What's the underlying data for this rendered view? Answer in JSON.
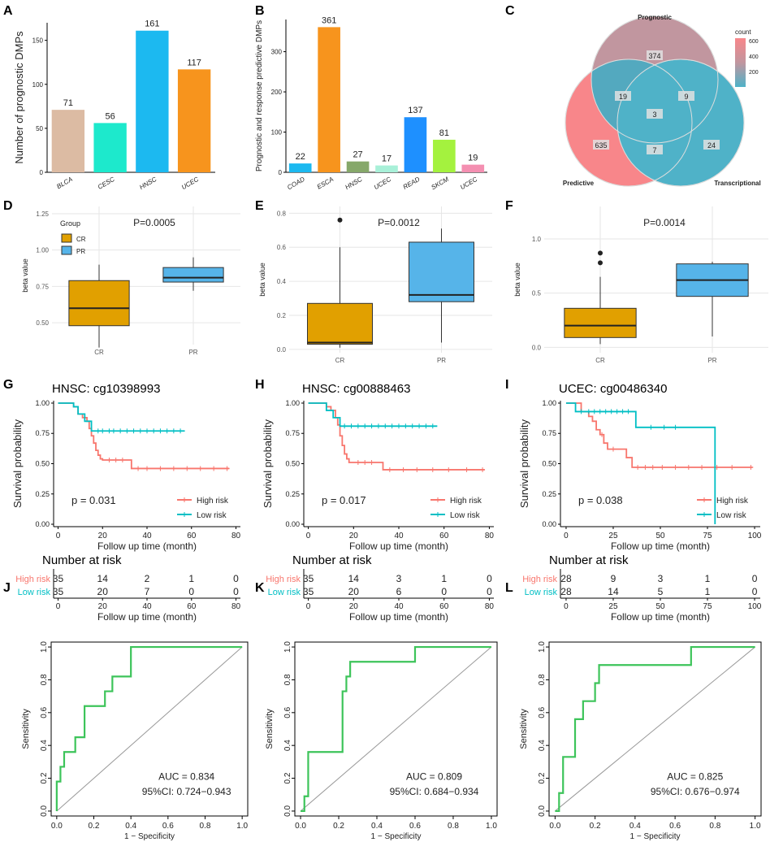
{
  "colors": {
    "blca": "#dcbba3",
    "cesc": "#1de9cc",
    "hnsc": "#1cb9f0",
    "ucec": "#f7941d",
    "coad": "#1cb9f0",
    "esca": "#f7941d",
    "hnsc_b": "#86a86a",
    "ucec_b": "#a8f0d8",
    "read": "#1e90ff",
    "skcm": "#a4f23e",
    "ucec2": "#f48fb1",
    "cr": "#e1a000",
    "pr": "#56b4e9",
    "high": "#f8766d",
    "low": "#00bfc4",
    "roc": "#3dc45a",
    "venn_prog": "#c1969f",
    "venn_pred": "#f8868a",
    "venn_trans": "#4fb2c8"
  },
  "chart_data": [
    {
      "panel": "A",
      "type": "bar",
      "title": "",
      "xlabel": "",
      "ylabel": "Number of prognostic DMPs",
      "categories": [
        "BLCA",
        "CESC",
        "HNSC",
        "UCEC"
      ],
      "values": [
        71,
        56,
        161,
        117
      ],
      "value_labels": [
        "71",
        "56",
        "161",
        "117"
      ],
      "ylim": [
        0,
        170
      ],
      "yticks": [
        0,
        50,
        100,
        150
      ]
    },
    {
      "panel": "B",
      "type": "bar",
      "title": "",
      "xlabel": "",
      "ylabel": "Prognostic and response predictive DMPs",
      "categories": [
        "COAD",
        "ESCA",
        "HNSC",
        "UCEC",
        "READ",
        "SKCM",
        "UCEC"
      ],
      "values": [
        22,
        361,
        27,
        17,
        137,
        81,
        19
      ],
      "value_labels": [
        "22",
        "361",
        "27",
        "17",
        "137",
        "81",
        "19"
      ],
      "ylim": [
        0,
        380
      ],
      "yticks": [
        0,
        100,
        200,
        300
      ]
    },
    {
      "panel": "C",
      "type": "venn",
      "sets": [
        "Prognostic",
        "Predictive",
        "Transcriptional"
      ],
      "regions": {
        "prognostic_only": 374,
        "predictive_only": 635,
        "transcriptional_only": 24,
        "prog_pred": 19,
        "prog_trans": 9,
        "pred_trans": 7,
        "all": 3
      },
      "legend_title": "count",
      "legend_ticks": [
        "600",
        "400",
        "200"
      ]
    },
    {
      "panel": "D",
      "type": "box",
      "ylabel": "beta value",
      "groups": [
        "CR",
        "PR"
      ],
      "pvalue": "P=0.0005",
      "legend_title": "Group",
      "legend_items": [
        "CR",
        "PR"
      ],
      "ylim": [
        0.35,
        1.3
      ],
      "yticks": [
        "0.50",
        "0.75",
        "1.00",
        "1.25"
      ],
      "ytick_values": [
        0.5,
        0.75,
        1.0,
        1.25
      ],
      "boxes": [
        {
          "min": 0.33,
          "q1": 0.48,
          "median": 0.6,
          "q3": 0.79,
          "max": 0.9,
          "outliers": []
        },
        {
          "min": 0.72,
          "q1": 0.78,
          "median": 0.81,
          "q3": 0.88,
          "max": 0.95,
          "outliers": []
        }
      ]
    },
    {
      "panel": "E",
      "type": "box",
      "ylabel": "beta value",
      "groups": [
        "CR",
        "PR"
      ],
      "pvalue": "P=0.0012",
      "ylim": [
        -0.02,
        0.84
      ],
      "yticks": [
        "0.0",
        "0.2",
        "0.4",
        "0.6",
        "0.8"
      ],
      "ytick_values": [
        0,
        0.2,
        0.4,
        0.6,
        0.8
      ],
      "boxes": [
        {
          "min": 0.01,
          "q1": 0.03,
          "median": 0.04,
          "q3": 0.27,
          "max": 0.6,
          "outliers": [
            0.76
          ]
        },
        {
          "min": 0.04,
          "q1": 0.28,
          "median": 0.32,
          "q3": 0.63,
          "max": 0.71,
          "outliers": []
        }
      ]
    },
    {
      "panel": "F",
      "type": "box",
      "ylabel": "beta value",
      "groups": [
        "CR",
        "PR"
      ],
      "pvalue": "P=0.0014",
      "ylim": [
        -0.05,
        1.3
      ],
      "yticks": [
        "0.0",
        "0.5",
        "1.0"
      ],
      "ytick_values": [
        0,
        0.5,
        1.0
      ],
      "boxes": [
        {
          "min": 0.03,
          "q1": 0.09,
          "median": 0.2,
          "q3": 0.36,
          "max": 0.65,
          "outliers": [
            0.78,
            0.87
          ]
        },
        {
          "min": 0.1,
          "q1": 0.47,
          "median": 0.62,
          "q3": 0.77,
          "max": 0.79,
          "outliers": []
        }
      ]
    },
    {
      "panel": "G",
      "type": "line",
      "subtype": "kaplan-meier",
      "title": "HNSC: cg10398993",
      "xlabel": "Follow up time (month)",
      "ylabel": "Survival probability",
      "pvalue": "p = 0.031",
      "xlim": [
        -2,
        82
      ],
      "xticks": [
        "0",
        "20",
        "40",
        "60",
        "80"
      ],
      "xtick_values": [
        0,
        20,
        40,
        60,
        80
      ],
      "ylim": [
        -0.02,
        1.02
      ],
      "yticks": [
        "0.00",
        "0.25",
        "0.50",
        "0.75",
        "1.00"
      ],
      "ytick_values": [
        0,
        0.25,
        0.5,
        0.75,
        1.0
      ],
      "series": [
        {
          "name": "High risk",
          "x": [
            0,
            7,
            9,
            11,
            13,
            14,
            15,
            16,
            17,
            18,
            19,
            20,
            33,
            77
          ],
          "y": [
            1.0,
            0.97,
            0.91,
            0.88,
            0.85,
            0.79,
            0.73,
            0.67,
            0.61,
            0.57,
            0.54,
            0.53,
            0.46,
            0.46
          ],
          "censor_x": [
            23,
            26,
            29,
            36,
            40,
            46,
            52,
            58,
            64,
            70,
            76
          ]
        },
        {
          "name": "Low risk",
          "x": [
            0,
            7,
            9,
            12,
            15,
            57
          ],
          "y": [
            1.0,
            0.97,
            0.91,
            0.85,
            0.77,
            0.77
          ],
          "censor_x": [
            18,
            20,
            23,
            25,
            28,
            31,
            34,
            37,
            40,
            43,
            46,
            49,
            52,
            55
          ]
        }
      ],
      "risk_table_title": "Number at risk",
      "risk_table": [
        {
          "name": "High risk",
          "values": [
            "35",
            "14",
            "2",
            "1",
            "0"
          ]
        },
        {
          "name": "Low risk",
          "values": [
            "35",
            "20",
            "7",
            "0",
            "0"
          ]
        }
      ]
    },
    {
      "panel": "H",
      "type": "line",
      "subtype": "kaplan-meier",
      "title": "HNSC: cg00888463",
      "xlabel": "Follow up time (month)",
      "ylabel": "Survival probability",
      "pvalue": "p = 0.017",
      "xlim": [
        -2,
        82
      ],
      "xticks": [
        "0",
        "20",
        "40",
        "60",
        "80"
      ],
      "xtick_values": [
        0,
        20,
        40,
        60,
        80
      ],
      "ylim": [
        -0.02,
        1.02
      ],
      "yticks": [
        "0.00",
        "0.25",
        "0.50",
        "0.75",
        "1.00"
      ],
      "ytick_values": [
        0,
        0.25,
        0.5,
        0.75,
        1.0
      ],
      "series": [
        {
          "name": "High risk",
          "x": [
            0,
            8,
            10,
            12,
            13,
            14,
            15,
            16,
            17,
            18,
            20,
            33,
            78
          ],
          "y": [
            1.0,
            0.97,
            0.94,
            0.88,
            0.82,
            0.73,
            0.65,
            0.58,
            0.54,
            0.51,
            0.51,
            0.45,
            0.45
          ],
          "censor_x": [
            22,
            25,
            28,
            36,
            42,
            48,
            55,
            62,
            70,
            77
          ]
        },
        {
          "name": "Low risk",
          "x": [
            0,
            8,
            11,
            14,
            57
          ],
          "y": [
            1.0,
            0.94,
            0.88,
            0.81,
            0.81
          ],
          "censor_x": [
            16,
            19,
            22,
            25,
            28,
            31,
            34,
            37,
            40,
            43,
            46,
            49,
            52,
            55
          ]
        }
      ],
      "risk_table_title": "Number at risk",
      "risk_table": [
        {
          "name": "High risk",
          "values": [
            "35",
            "14",
            "3",
            "1",
            "0"
          ]
        },
        {
          "name": "Low risk",
          "values": [
            "35",
            "20",
            "6",
            "0",
            "0"
          ]
        }
      ]
    },
    {
      "panel": "I",
      "type": "line",
      "subtype": "kaplan-meier",
      "title": "UCEC: cg00486340",
      "xlabel": "Follow up time (month)",
      "ylabel": "Survival probability",
      "pvalue": "p = 0.038",
      "xlim": [
        -3,
        103
      ],
      "xticks": [
        "0",
        "25",
        "50",
        "75",
        "100"
      ],
      "xtick_values": [
        0,
        25,
        50,
        75,
        100
      ],
      "ylim": [
        -0.02,
        1.02
      ],
      "yticks": [
        "0.00",
        "0.25",
        "0.50",
        "0.75",
        "1.00"
      ],
      "ytick_values": [
        0,
        0.25,
        0.5,
        0.75,
        1.0
      ],
      "series": [
        {
          "name": "High risk",
          "x": [
            0,
            8,
            12,
            14,
            16,
            18,
            20,
            22,
            27,
            32,
            35,
            99
          ],
          "y": [
            1.0,
            0.93,
            0.89,
            0.85,
            0.78,
            0.74,
            0.67,
            0.62,
            0.62,
            0.55,
            0.47,
            0.47
          ],
          "censor_x": [
            19,
            25,
            38,
            42,
            46,
            51,
            58,
            65,
            72,
            80,
            88,
            98
          ]
        },
        {
          "name": "Low risk",
          "x": [
            0,
            5,
            37,
            78,
            79
          ],
          "y": [
            1.0,
            0.93,
            0.8,
            0.8,
            0.0
          ],
          "censor_x": [
            8,
            12,
            15,
            18,
            21,
            24,
            27,
            30,
            33,
            45,
            52,
            58
          ]
        }
      ],
      "risk_table_title": "Number at risk",
      "risk_table": [
        {
          "name": "High risk",
          "values": [
            "28",
            "9",
            "3",
            "1",
            "0"
          ]
        },
        {
          "name": "Low risk",
          "values": [
            "28",
            "14",
            "5",
            "1",
            "0"
          ]
        }
      ]
    },
    {
      "panel": "J",
      "type": "line",
      "subtype": "roc",
      "xlabel": "1 − Specificity",
      "ylabel": "Sensitivity",
      "auc": "AUC = 0.834",
      "ci": "95%CI: 0.724−0.943",
      "xlim": [
        -0.03,
        1.03
      ],
      "ylim": [
        -0.03,
        1.03
      ],
      "xticks": [
        "0.0",
        "0.2",
        "0.4",
        "0.6",
        "0.8",
        "1.0"
      ],
      "yticks": [
        "0.0",
        "0.2",
        "0.4",
        "0.6",
        "0.8",
        "1.0"
      ],
      "tick_values": [
        0,
        0.2,
        0.4,
        0.6,
        0.8,
        1.0
      ],
      "x": [
        0,
        0,
        0.02,
        0.02,
        0.04,
        0.04,
        0.1,
        0.1,
        0.15,
        0.15,
        0.26,
        0.26,
        0.3,
        0.3,
        0.34,
        0.34,
        0.4,
        0.4,
        1.0
      ],
      "y": [
        0,
        0.18,
        0.18,
        0.27,
        0.27,
        0.36,
        0.36,
        0.45,
        0.45,
        0.64,
        0.64,
        0.73,
        0.73,
        0.82,
        0.82,
        0.82,
        0.82,
        1.0,
        1.0
      ]
    },
    {
      "panel": "K",
      "type": "line",
      "subtype": "roc",
      "xlabel": "1 − Specificity",
      "ylabel": "Sensitivity",
      "auc": "AUC = 0.809",
      "ci": "95%CI: 0.684−0.934",
      "xlim": [
        -0.03,
        1.03
      ],
      "ylim": [
        -0.03,
        1.03
      ],
      "xticks": [
        "0.0",
        "0.2",
        "0.4",
        "0.6",
        "0.8",
        "1.0"
      ],
      "yticks": [
        "0.0",
        "0.2",
        "0.4",
        "0.6",
        "0.8",
        "1.0"
      ],
      "tick_values": [
        0,
        0.2,
        0.4,
        0.6,
        0.8,
        1.0
      ],
      "x": [
        0,
        0.02,
        0.02,
        0.04,
        0.04,
        0.22,
        0.22,
        0.24,
        0.24,
        0.26,
        0.26,
        0.28,
        0.28,
        0.6,
        0.6,
        1.0
      ],
      "y": [
        0,
        0,
        0.09,
        0.09,
        0.36,
        0.36,
        0.73,
        0.73,
        0.82,
        0.82,
        0.91,
        0.91,
        0.91,
        0.91,
        1.0,
        1.0
      ]
    },
    {
      "panel": "L",
      "type": "line",
      "subtype": "roc",
      "xlabel": "1 − Specificity",
      "ylabel": "Sensitivity",
      "auc": "AUC = 0.825",
      "ci": "95%CI: 0.676−0.974",
      "xlim": [
        -0.03,
        1.03
      ],
      "ylim": [
        -0.03,
        1.03
      ],
      "xticks": [
        "0.0",
        "0.2",
        "0.4",
        "0.6",
        "0.8",
        "1.0"
      ],
      "yticks": [
        "0.0",
        "0.2",
        "0.4",
        "0.6",
        "0.8",
        "1.0"
      ],
      "tick_values": [
        0,
        0.2,
        0.4,
        0.6,
        0.8,
        1.0
      ],
      "x": [
        0,
        0.02,
        0.02,
        0.04,
        0.04,
        0.1,
        0.1,
        0.14,
        0.14,
        0.2,
        0.2,
        0.22,
        0.22,
        0.68,
        0.68,
        1.0
      ],
      "y": [
        0,
        0,
        0.11,
        0.11,
        0.33,
        0.33,
        0.56,
        0.56,
        0.67,
        0.67,
        0.78,
        0.78,
        0.89,
        0.89,
        1.0,
        1.0
      ]
    }
  ]
}
